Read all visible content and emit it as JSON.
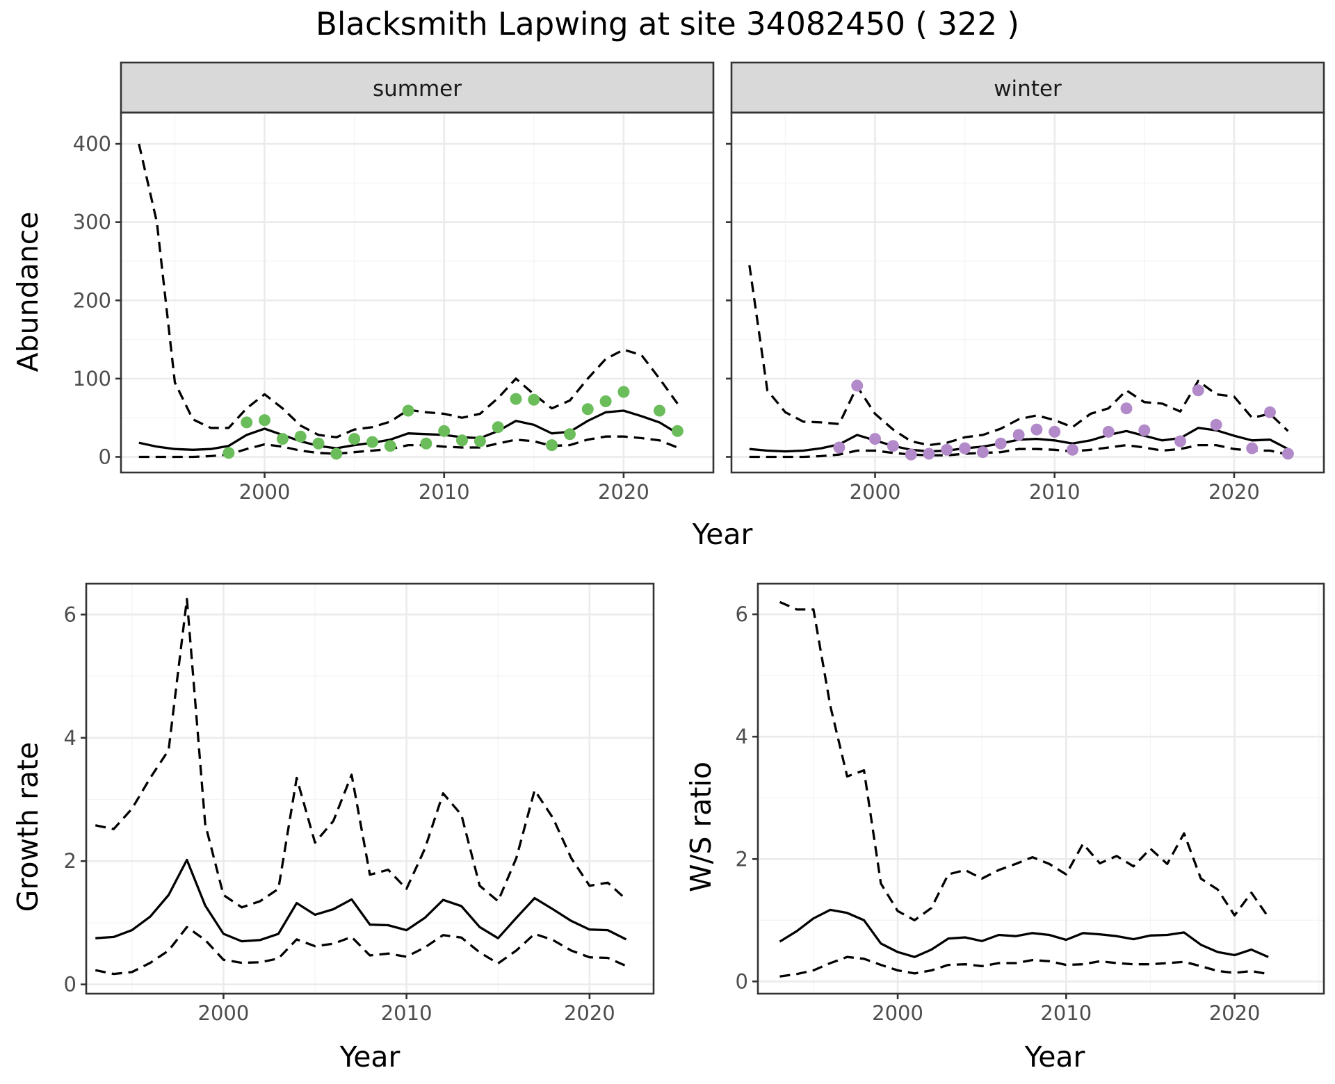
{
  "figure": {
    "title": "Blacksmith Lapwing at site 34082450 ( 322 )",
    "shared_xlabel": "Year"
  },
  "colors": {
    "summer_points": "#6abd5a",
    "winter_points": "#b28ac9",
    "lines": "#000000"
  },
  "chart_data": [
    {
      "type": "line",
      "facet": "summer",
      "ylabel": "Abundance",
      "xlim": [
        1992,
        2025
      ],
      "ylim": [
        -20,
        440
      ],
      "xticks": [
        2000,
        2010,
        2020
      ],
      "yticks": [
        0,
        100,
        200,
        300,
        400
      ],
      "grid": true,
      "x": [
        1993,
        1994,
        1995,
        1996,
        1997,
        1998,
        1999,
        2000,
        2001,
        2002,
        2003,
        2004,
        2005,
        2006,
        2007,
        2008,
        2009,
        2010,
        2011,
        2012,
        2013,
        2014,
        2015,
        2016,
        2017,
        2018,
        2019,
        2020,
        2021,
        2022,
        2023
      ],
      "series": [
        {
          "role": "estimate",
          "values": [
            18,
            13,
            10,
            9,
            10,
            14,
            28,
            36,
            28,
            20,
            14,
            11,
            15,
            18,
            22,
            30,
            29,
            28,
            25,
            24,
            33,
            46,
            41,
            30,
            32,
            46,
            57,
            59,
            52,
            44,
            30
          ]
        },
        {
          "role": "upper",
          "values": [
            400,
            300,
            95,
            48,
            37,
            37,
            62,
            80,
            62,
            40,
            28,
            25,
            35,
            38,
            45,
            60,
            57,
            55,
            50,
            55,
            75,
            100,
            80,
            62,
            72,
            100,
            125,
            137,
            130,
            100,
            68
          ]
        },
        {
          "role": "lower",
          "values": [
            0,
            0,
            0,
            0,
            1,
            3,
            10,
            16,
            13,
            8,
            5,
            4,
            6,
            8,
            10,
            15,
            15,
            13,
            12,
            12,
            17,
            22,
            20,
            14,
            15,
            22,
            26,
            26,
            24,
            21,
            12
          ]
        }
      ],
      "points": {
        "x": [
          1998,
          1999,
          2000,
          2001,
          2002,
          2003,
          2004,
          2005,
          2006,
          2007,
          2008,
          2009,
          2010,
          2011,
          2012,
          2013,
          2014,
          2015,
          2016,
          2017,
          2018,
          2019,
          2020,
          2022,
          2023
        ],
        "y": [
          5,
          44,
          47,
          23,
          26,
          17,
          4,
          23,
          19,
          14,
          59,
          17,
          33,
          21,
          20,
          38,
          74,
          73,
          15,
          29,
          61,
          71,
          83,
          59,
          33
        ]
      }
    },
    {
      "type": "line",
      "facet": "winter",
      "ylabel": "",
      "xlim": [
        1992,
        2025
      ],
      "ylim": [
        -20,
        440
      ],
      "xticks": [
        2000,
        2010,
        2020
      ],
      "yticks": [
        0,
        100,
        200,
        300,
        400
      ],
      "grid": true,
      "x": [
        1993,
        1994,
        1995,
        1996,
        1997,
        1998,
        1999,
        2000,
        2001,
        2002,
        2003,
        2004,
        2005,
        2006,
        2007,
        2008,
        2009,
        2010,
        2011,
        2012,
        2013,
        2014,
        2015,
        2016,
        2017,
        2018,
        2019,
        2020,
        2021,
        2022,
        2023
      ],
      "series": [
        {
          "role": "estimate",
          "values": [
            10,
            8,
            7,
            8,
            11,
            16,
            28,
            21,
            14,
            9,
            7,
            8,
            11,
            13,
            17,
            22,
            23,
            21,
            17,
            21,
            28,
            33,
            27,
            21,
            24,
            37,
            34,
            27,
            21,
            22,
            10
          ]
        },
        {
          "role": "upper",
          "values": [
            245,
            85,
            57,
            45,
            44,
            42,
            90,
            55,
            35,
            20,
            15,
            18,
            25,
            28,
            36,
            48,
            53,
            47,
            38,
            55,
            62,
            85,
            70,
            68,
            58,
            97,
            80,
            77,
            50,
            55,
            33
          ]
        },
        {
          "role": "lower",
          "values": [
            0,
            0,
            0,
            0,
            1,
            3,
            8,
            8,
            5,
            3,
            2,
            2,
            4,
            5,
            6,
            10,
            10,
            9,
            7,
            9,
            12,
            15,
            12,
            8,
            10,
            15,
            15,
            10,
            8,
            8,
            3
          ]
        }
      ],
      "points": {
        "x": [
          1998,
          1999,
          2000,
          2001,
          2002,
          2003,
          2004,
          2005,
          2006,
          2007,
          2008,
          2009,
          2010,
          2011,
          2013,
          2014,
          2015,
          2017,
          2018,
          2019,
          2021,
          2022,
          2023
        ],
        "y": [
          12,
          91,
          23,
          14,
          3,
          4,
          9,
          11,
          6,
          17,
          28,
          35,
          32,
          9,
          32,
          62,
          34,
          20,
          85,
          41,
          11,
          57,
          4
        ]
      }
    },
    {
      "type": "line",
      "facet": "growth",
      "xlabel": "Year",
      "ylabel": "Growth rate",
      "xlim": [
        1992.5,
        2023.5
      ],
      "ylim": [
        -0.15,
        6.5
      ],
      "xticks": [
        2000,
        2010,
        2020
      ],
      "yticks": [
        0,
        2,
        4,
        6
      ],
      "grid": true,
      "x": [
        1993,
        1994,
        1995,
        1996,
        1997,
        1998,
        1999,
        2000,
        2001,
        2002,
        2003,
        2004,
        2005,
        2006,
        2007,
        2008,
        2009,
        2010,
        2011,
        2012,
        2013,
        2014,
        2015,
        2016,
        2017,
        2018,
        2019,
        2020,
        2021,
        2022
      ],
      "series": [
        {
          "role": "estimate",
          "values": [
            0.75,
            0.77,
            0.88,
            1.1,
            1.45,
            2.02,
            1.28,
            0.82,
            0.7,
            0.72,
            0.82,
            1.32,
            1.13,
            1.22,
            1.38,
            0.97,
            0.96,
            0.88,
            1.08,
            1.37,
            1.27,
            0.93,
            0.75,
            1.08,
            1.4,
            1.22,
            1.03,
            0.89,
            0.88,
            0.73
          ]
        },
        {
          "role": "upper",
          "values": [
            2.58,
            2.52,
            2.85,
            3.35,
            3.8,
            6.25,
            2.6,
            1.45,
            1.25,
            1.35,
            1.55,
            3.35,
            2.3,
            2.65,
            3.4,
            1.78,
            1.86,
            1.55,
            2.2,
            3.1,
            2.75,
            1.6,
            1.35,
            2.05,
            3.15,
            2.7,
            2.05,
            1.6,
            1.65,
            1.38
          ]
        },
        {
          "role": "lower",
          "values": [
            0.23,
            0.17,
            0.2,
            0.35,
            0.55,
            0.93,
            0.72,
            0.4,
            0.35,
            0.36,
            0.42,
            0.73,
            0.62,
            0.66,
            0.77,
            0.47,
            0.5,
            0.45,
            0.6,
            0.8,
            0.76,
            0.52,
            0.34,
            0.55,
            0.82,
            0.72,
            0.55,
            0.44,
            0.43,
            0.3
          ]
        }
      ]
    },
    {
      "type": "line",
      "facet": "ws_ratio",
      "xlabel": "Year",
      "ylabel": "W/S ratio",
      "xlim": [
        1991.7,
        2025.3
      ],
      "ylim": [
        -0.2,
        6.5
      ],
      "xticks": [
        2000,
        2010,
        2020
      ],
      "yticks": [
        0,
        2,
        4,
        6
      ],
      "grid": true,
      "x": [
        1993,
        1994,
        1995,
        1996,
        1997,
        1998,
        1999,
        2000,
        2001,
        2002,
        2003,
        2004,
        2005,
        2006,
        2007,
        2008,
        2009,
        2010,
        2011,
        2012,
        2013,
        2014,
        2015,
        2016,
        2017,
        2018,
        2019,
        2020,
        2021,
        2022
      ],
      "series": [
        {
          "role": "estimate",
          "values": [
            0.65,
            0.82,
            1.03,
            1.17,
            1.12,
            1.0,
            0.62,
            0.48,
            0.4,
            0.52,
            0.7,
            0.72,
            0.66,
            0.76,
            0.74,
            0.79,
            0.76,
            0.68,
            0.79,
            0.77,
            0.74,
            0.69,
            0.75,
            0.76,
            0.8,
            0.6,
            0.48,
            0.43,
            0.52,
            0.4
          ]
        },
        {
          "role": "upper",
          "values": [
            6.2,
            6.08,
            6.08,
            4.5,
            3.35,
            3.45,
            1.6,
            1.15,
            1.0,
            1.2,
            1.75,
            1.82,
            1.68,
            1.82,
            1.92,
            2.03,
            1.92,
            1.75,
            2.25,
            1.93,
            2.05,
            1.88,
            2.17,
            1.92,
            2.42,
            1.68,
            1.5,
            1.08,
            1.45,
            1.05
          ]
        },
        {
          "role": "lower",
          "values": [
            0.08,
            0.12,
            0.18,
            0.3,
            0.4,
            0.37,
            0.27,
            0.18,
            0.13,
            0.18,
            0.27,
            0.28,
            0.25,
            0.3,
            0.3,
            0.35,
            0.33,
            0.27,
            0.28,
            0.33,
            0.3,
            0.28,
            0.28,
            0.3,
            0.32,
            0.25,
            0.17,
            0.14,
            0.17,
            0.12
          ]
        }
      ]
    }
  ]
}
